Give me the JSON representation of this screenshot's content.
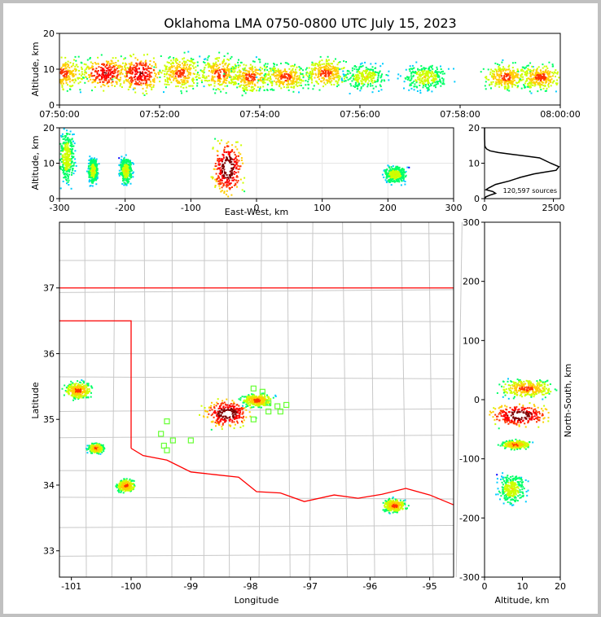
{
  "colors": {
    "frame": "#c0c0c0",
    "state_border": "#ff0000",
    "county_lines": "#c8c8c8",
    "stations": "#66ff33",
    "curve": "#000000",
    "density_scale": [
      "#ff00ff",
      "#0000ff",
      "#00ccff",
      "#00ff66",
      "#ccff00",
      "#ffcc00",
      "#ff3300",
      "#ff0000",
      "#800000",
      "#ffffff"
    ]
  },
  "chart_data": [
    {
      "panel": "altitude-vs-time",
      "type": "heatmap",
      "title": "Oklahoma LMA 0750-0800 UTC July 15, 2023",
      "xlabel": "",
      "ylabel": "Altitude, km",
      "x_ticks": [
        "07:50:00",
        "07:52:00",
        "07:54:00",
        "07:56:00",
        "07:58:00",
        "08:00:00"
      ],
      "y_ticks": [
        0,
        10,
        20
      ],
      "xlim": [
        "07:50:00",
        "08:00:00"
      ],
      "ylim": [
        0,
        20
      ],
      "clusters": [
        {
          "t": 0.05,
          "alt": 9,
          "spread": 4,
          "intensity": 3
        },
        {
          "t": 0.9,
          "alt": 9,
          "spread": 3.5,
          "intensity": 4
        },
        {
          "t": 1.6,
          "alt": 9,
          "spread": 4,
          "intensity": 4
        },
        {
          "t": 2.4,
          "alt": 9,
          "spread": 4,
          "intensity": 3
        },
        {
          "t": 3.2,
          "alt": 9,
          "spread": 4,
          "intensity": 3
        },
        {
          "t": 3.8,
          "alt": 8,
          "spread": 3.5,
          "intensity": 3
        },
        {
          "t": 4.5,
          "alt": 8,
          "spread": 3,
          "intensity": 3
        },
        {
          "t": 5.3,
          "alt": 9,
          "spread": 3.5,
          "intensity": 3
        },
        {
          "t": 6.1,
          "alt": 8,
          "spread": 3,
          "intensity": 2
        },
        {
          "t": 7.3,
          "alt": 8,
          "spread": 3,
          "intensity": 2
        },
        {
          "t": 8.9,
          "alt": 8,
          "spread": 3,
          "intensity": 3
        },
        {
          "t": 9.6,
          "alt": 8,
          "spread": 3,
          "intensity": 3
        }
      ]
    },
    {
      "panel": "altitude-vs-east-west",
      "type": "heatmap",
      "xlabel": "East-West, km",
      "ylabel": "Altitude, km",
      "x_ticks": [
        -300,
        -200,
        -100,
        0,
        100,
        200,
        300
      ],
      "y_ticks": [
        0,
        10,
        20
      ],
      "xlim": [
        -300,
        300
      ],
      "ylim": [
        0,
        20
      ],
      "grid": true,
      "clusters": [
        {
          "x": -290,
          "alt": 12,
          "sx": 10,
          "sy": 6,
          "intensity": 2
        },
        {
          "x": -250,
          "alt": 8,
          "sx": 6,
          "sy": 3,
          "intensity": 2
        },
        {
          "x": -200,
          "alt": 8,
          "sx": 8,
          "sy": 3,
          "intensity": 2
        },
        {
          "x": -45,
          "alt": 9,
          "sx": 18,
          "sy": 6,
          "intensity": 5
        },
        {
          "x": 210,
          "alt": 7,
          "sx": 14,
          "sy": 2,
          "intensity": 2
        }
      ]
    },
    {
      "panel": "altitude-histogram",
      "type": "line",
      "annotation": "120,597 sources",
      "x_ticks": [
        0,
        2500
      ],
      "y_ticks": [
        0,
        10,
        20
      ],
      "xlim": [
        0,
        2750
      ],
      "ylim": [
        0,
        20
      ],
      "series": [
        {
          "x": [
            0,
            0,
            5,
            10,
            30,
            80,
            200,
            500,
            1000,
            1500,
            2000,
            2400,
            2700,
            2600,
            2200,
            1800,
            1300,
            900,
            400,
            150,
            50,
            300,
            400,
            200,
            50,
            0
          ],
          "y": [
            20,
            17,
            16,
            15,
            14.5,
            14,
            13.5,
            13,
            12.5,
            12,
            11.5,
            10,
            9,
            8,
            7.5,
            7,
            6,
            5,
            4,
            3,
            2.5,
            2,
            1.5,
            1,
            0.5,
            0
          ]
        }
      ]
    },
    {
      "panel": "plan-view",
      "type": "heatmap",
      "xlabel": "Longitude",
      "ylabel": "Latitude",
      "x_ticks": [
        -101,
        -100,
        -99,
        -98,
        -97,
        -96,
        -95
      ],
      "y_ticks": [
        33,
        34,
        35,
        36,
        37
      ],
      "xlim": [
        -101.2,
        -94.6
      ],
      "ylim": [
        32.6,
        38.0
      ],
      "clusters": [
        {
          "lon": -100.9,
          "lat": 35.45,
          "sx": 0.18,
          "sy": 0.1,
          "intensity": 3
        },
        {
          "lon": -100.6,
          "lat": 34.57,
          "sx": 0.1,
          "sy": 0.06,
          "intensity": 3
        },
        {
          "lon": -100.1,
          "lat": 34.0,
          "sx": 0.12,
          "sy": 0.08,
          "intensity": 3
        },
        {
          "lon": -98.4,
          "lat": 35.1,
          "sx": 0.3,
          "sy": 0.16,
          "intensity": 5
        },
        {
          "lon": -97.9,
          "lat": 35.3,
          "sx": 0.2,
          "sy": 0.08,
          "intensity": 3
        },
        {
          "lon": -95.6,
          "lat": 33.7,
          "sx": 0.15,
          "sy": 0.08,
          "intensity": 3
        }
      ],
      "stations": [
        {
          "lon": -97.95,
          "lat": 35.47
        },
        {
          "lon": -97.8,
          "lat": 35.42
        },
        {
          "lon": -97.7,
          "lat": 35.25
        },
        {
          "lon": -97.55,
          "lat": 35.2
        },
        {
          "lon": -97.4,
          "lat": 35.22
        },
        {
          "lon": -97.5,
          "lat": 35.12
        },
        {
          "lon": -97.7,
          "lat": 35.12
        },
        {
          "lon": -97.95,
          "lat": 35.0
        },
        {
          "lon": -99.4,
          "lat": 34.97
        },
        {
          "lon": -99.5,
          "lat": 34.78
        },
        {
          "lon": -99.3,
          "lat": 34.68
        },
        {
          "lon": -99.45,
          "lat": 34.6
        },
        {
          "lon": -99.4,
          "lat": 34.53
        },
        {
          "lon": -99.0,
          "lat": 34.68
        }
      ]
    },
    {
      "panel": "north-south-vs-altitude",
      "type": "heatmap",
      "xlabel": "Altitude, km",
      "ylabel": "North-South, km",
      "x_ticks": [
        0,
        10,
        20
      ],
      "y_ticks": [
        -300,
        -200,
        -100,
        0,
        100,
        200,
        300
      ],
      "xlim": [
        0,
        20
      ],
      "ylim": [
        -300,
        300
      ],
      "clusters": [
        {
          "alt": 9,
          "ns": -25,
          "sx": 6,
          "sy": 15,
          "intensity": 5
        },
        {
          "alt": 11,
          "ns": 20,
          "sx": 6,
          "sy": 12,
          "intensity": 3
        },
        {
          "alt": 8,
          "ns": -75,
          "sx": 3,
          "sy": 6,
          "intensity": 3
        },
        {
          "alt": 7,
          "ns": -150,
          "sx": 3,
          "sy": 20,
          "intensity": 2
        }
      ]
    }
  ]
}
